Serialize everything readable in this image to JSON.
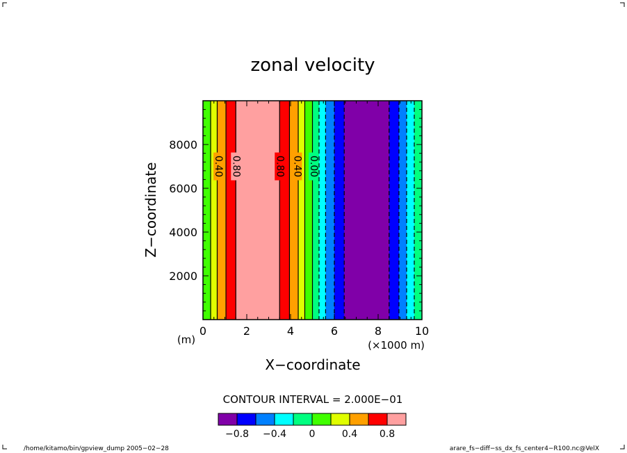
{
  "chart_data": {
    "type": "heatmap",
    "title": "zonal velocity",
    "xlabel": "X−coordinate",
    "ylabel": "Z−coordinate",
    "x_unit_left": "(m)",
    "x_unit_right": "(×1000 m)",
    "xlim": [
      0,
      10
    ],
    "ylim": [
      0,
      10000
    ],
    "xticks": [
      0,
      2,
      4,
      6,
      8,
      10
    ],
    "yticks": [
      2000,
      4000,
      6000,
      8000
    ],
    "levels": [
      -1.0,
      -0.8,
      -0.6,
      -0.4,
      -0.2,
      0.0,
      0.2,
      0.4,
      0.6,
      0.8,
      1.0
    ],
    "colors": [
      "#8000a8",
      "#0000ff",
      "#0080ff",
      "#00ffff",
      "#00ff80",
      "#40ff00",
      "#e0ff00",
      "#ffa000",
      "#ff0000",
      "#ffa0a0"
    ],
    "bands": [
      {
        "x0": 0.0,
        "x1": 0.35,
        "level": 5
      },
      {
        "x0": 0.35,
        "x1": 0.65,
        "level": 6
      },
      {
        "x0": 0.65,
        "x1": 1.05,
        "level": 7
      },
      {
        "x0": 1.05,
        "x1": 1.5,
        "level": 8
      },
      {
        "x0": 1.5,
        "x1": 3.5,
        "level": 9
      },
      {
        "x0": 3.5,
        "x1": 3.95,
        "level": 8
      },
      {
        "x0": 3.95,
        "x1": 4.35,
        "level": 7
      },
      {
        "x0": 4.35,
        "x1": 4.65,
        "level": 6
      },
      {
        "x0": 4.65,
        "x1": 5.0,
        "level": 5
      },
      {
        "x0": 5.0,
        "x1": 5.3,
        "level": 4
      },
      {
        "x0": 5.3,
        "x1": 5.6,
        "level": 3
      },
      {
        "x0": 5.6,
        "x1": 6.0,
        "level": 2
      },
      {
        "x0": 6.0,
        "x1": 6.45,
        "level": 1
      },
      {
        "x0": 6.45,
        "x1": 8.5,
        "level": 0
      },
      {
        "x0": 8.5,
        "x1": 8.95,
        "level": 1
      },
      {
        "x0": 8.95,
        "x1": 9.3,
        "level": 2
      },
      {
        "x0": 9.3,
        "x1": 9.65,
        "level": 3
      },
      {
        "x0": 9.65,
        "x1": 10.0,
        "level": 4
      }
    ],
    "contours_solid": [
      0.35,
      0.65,
      1.05,
      1.5,
      3.5,
      3.95,
      4.35,
      4.65,
      5.0
    ],
    "contours_dashed": [
      5.3,
      5.6,
      6.0,
      6.45,
      8.5,
      8.95,
      9.3,
      9.65
    ],
    "contour_labels": [
      {
        "x": 0.7,
        "y": 7000,
        "text": "0.40"
      },
      {
        "x": 1.5,
        "y": 7000,
        "text": "0.80"
      },
      {
        "x": 3.5,
        "y": 7000,
        "text": "0.80"
      },
      {
        "x": 4.3,
        "y": 7000,
        "text": "0.40"
      },
      {
        "x": 5.05,
        "y": 7000,
        "text": "0.00"
      }
    ],
    "contour_interval": "CONTOUR INTERVAL = 2.000E−01",
    "colorbar_ticks": [
      {
        "value": -0.8,
        "label": "−0.8"
      },
      {
        "value": -0.4,
        "label": "−0.4"
      },
      {
        "value": 0.0,
        "label": "0"
      },
      {
        "value": 0.4,
        "label": "0.4"
      },
      {
        "value": 0.8,
        "label": "0.8"
      }
    ]
  },
  "footer": {
    "left": "/home/kitamo/bin/gpview_dump  2005−02−28",
    "right": "arare_fs−diff−ss_dx_fs_center4−R100.nc@VelX"
  }
}
